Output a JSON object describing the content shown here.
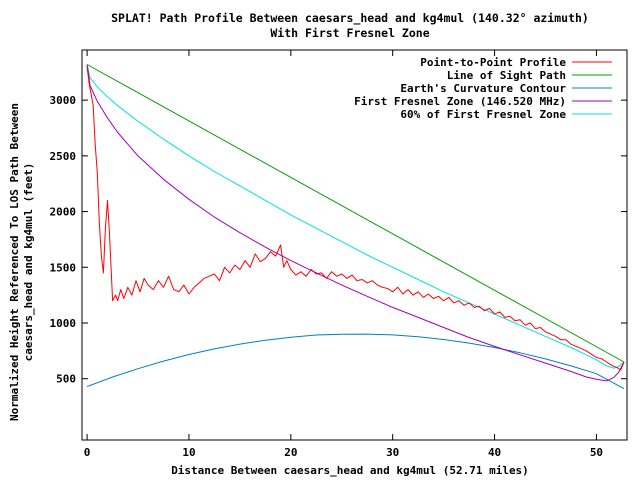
{
  "chart_data": {
    "type": "line",
    "title": "SPLAT! Path Profile Between caesars_head and kg4mul (140.32° azimuth)",
    "subtitle": "With First Fresnel Zone",
    "xlabel": "Distance Between caesars_head and kg4mul (52.71 miles)",
    "ylabel_line1": "Normalized Height Referenced To LOS Path Between",
    "ylabel_line2": "caesars_head and kg4mul (feet)",
    "xlim": [
      -0.5,
      53
    ],
    "ylim": [
      -50,
      3450
    ],
    "x_ticks": [
      0,
      10,
      20,
      30,
      40,
      50
    ],
    "y_ticks": [
      500,
      1000,
      1500,
      2000,
      2500,
      3000
    ],
    "x_tick_labels": [
      "0",
      "10",
      "20",
      "30",
      "40",
      "50"
    ],
    "y_tick_labels": [
      "500",
      "1000",
      "1500",
      "2000",
      "2500",
      "3000"
    ],
    "legend_position": "top-right",
    "grid": false,
    "series": [
      {
        "name": "Point-to-Point Profile",
        "color": "#ff0000",
        "x": [
          0,
          0.2,
          0.4,
          0.6,
          0.8,
          1.0,
          1.2,
          1.4,
          1.6,
          1.8,
          2.0,
          2.2,
          2.5,
          2.8,
          3.0,
          3.3,
          3.6,
          4.0,
          4.4,
          4.8,
          5.2,
          5.6,
          6.0,
          6.5,
          7.0,
          7.5,
          8.0,
          8.5,
          9.0,
          9.5,
          10.0,
          10.5,
          11.0,
          11.5,
          12.0,
          12.5,
          13.0,
          13.5,
          14.0,
          14.5,
          15.0,
          15.5,
          16.0,
          16.5,
          17.0,
          17.5,
          18.0,
          18.5,
          19.0,
          19.3,
          19.6,
          20.0,
          20.5,
          21.0,
          21.5,
          22.0,
          22.5,
          23.0,
          23.5,
          24.0,
          24.5,
          25.0,
          25.5,
          26.0,
          26.5,
          27.0,
          27.5,
          28.0,
          28.5,
          29.0,
          29.5,
          30.0,
          30.5,
          31.0,
          31.5,
          32.0,
          32.5,
          33.0,
          33.5,
          34.0,
          34.5,
          35.0,
          35.5,
          36.0,
          36.5,
          37.0,
          37.5,
          38.0,
          38.5,
          39.0,
          39.5,
          40.0,
          40.5,
          41.0,
          41.5,
          42.0,
          42.5,
          43.0,
          43.5,
          44.0,
          44.5,
          45.0,
          45.5,
          46.0,
          46.5,
          47.0,
          47.5,
          48.0,
          48.5,
          49.0,
          49.5,
          50.0,
          50.5,
          51.0,
          51.5,
          52.0,
          52.4,
          52.71
        ],
        "y": [
          3300,
          3150,
          3050,
          2950,
          2600,
          2350,
          1900,
          1600,
          1450,
          1850,
          2100,
          1800,
          1200,
          1250,
          1200,
          1300,
          1220,
          1320,
          1250,
          1380,
          1280,
          1400,
          1340,
          1300,
          1380,
          1320,
          1420,
          1300,
          1280,
          1340,
          1260,
          1320,
          1360,
          1400,
          1420,
          1440,
          1380,
          1500,
          1450,
          1520,
          1480,
          1560,
          1500,
          1620,
          1550,
          1580,
          1640,
          1600,
          1700,
          1500,
          1560,
          1480,
          1430,
          1460,
          1420,
          1480,
          1440,
          1450,
          1400,
          1460,
          1420,
          1440,
          1400,
          1430,
          1380,
          1390,
          1360,
          1380,
          1340,
          1320,
          1310,
          1280,
          1320,
          1260,
          1300,
          1250,
          1280,
          1230,
          1260,
          1220,
          1240,
          1200,
          1230,
          1180,
          1200,
          1160,
          1180,
          1140,
          1150,
          1110,
          1130,
          1080,
          1100,
          1050,
          1060,
          1020,
          1030,
          980,
          1000,
          950,
          960,
          920,
          900,
          880,
          850,
          850,
          810,
          790,
          770,
          750,
          720,
          690,
          680,
          650,
          620,
          600,
          580,
          650
        ]
      },
      {
        "name": "Line of Sight Path",
        "color": "#00a000",
        "x": [
          0,
          52.71
        ],
        "y": [
          3320,
          650
        ]
      },
      {
        "name": "Earth's Curvature Contour",
        "color": "#0080c0",
        "x": [
          0,
          2.5,
          5,
          7.5,
          10,
          12.5,
          15,
          17.5,
          20,
          22.5,
          25,
          27.5,
          30,
          32.5,
          35,
          37.5,
          40,
          42.5,
          45,
          47.5,
          50,
          52.71
        ],
        "y": [
          430,
          515,
          590,
          658,
          717,
          768,
          811,
          846,
          873,
          892,
          899,
          900,
          893,
          876,
          852,
          820,
          780,
          733,
          678,
          615,
          545,
          410
        ]
      },
      {
        "name": "First Fresnel Zone (146.520 MHz)",
        "color": "#a000c0",
        "x": [
          0,
          0.3,
          1,
          2,
          3,
          5,
          7.5,
          10,
          12.5,
          15,
          17.5,
          20,
          22.5,
          25,
          27.5,
          30,
          32.5,
          35,
          37.5,
          40,
          42.5,
          45,
          47.5,
          49,
          50,
          51,
          51.7,
          52.2,
          52.71
        ],
        "y": [
          3320,
          3130,
          2990,
          2840,
          2710,
          2500,
          2290,
          2110,
          1950,
          1810,
          1680,
          1560,
          1450,
          1340,
          1240,
          1140,
          1050,
          960,
          870,
          790,
          715,
          640,
          565,
          515,
          495,
          480,
          510,
          560,
          650
        ]
      },
      {
        "name": "60% of First Fresnel Zone",
        "color": "#00e0e0",
        "x": [
          0,
          0.3,
          1,
          2,
          3,
          5,
          7.5,
          10,
          12.5,
          15,
          17.5,
          20,
          22.5,
          25,
          27.5,
          30,
          32.5,
          35,
          37.5,
          40,
          42.5,
          45,
          47.5,
          49,
          50,
          51,
          51.7,
          52.2,
          52.71
        ],
        "y": [
          3320,
          3200,
          3120,
          3030,
          2950,
          2810,
          2650,
          2500,
          2360,
          2230,
          2100,
          1970,
          1850,
          1730,
          1610,
          1500,
          1390,
          1280,
          1180,
          1080,
          980,
          880,
          780,
          715,
          670,
          615,
          595,
          610,
          650
        ]
      }
    ]
  }
}
